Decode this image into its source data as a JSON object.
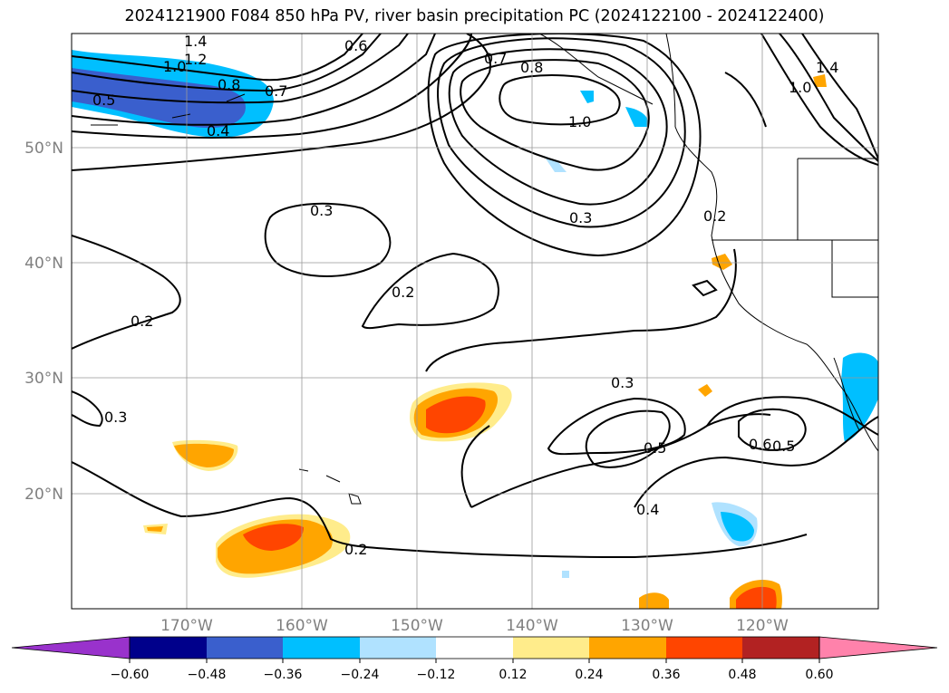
{
  "title": "2024121900 F084 850 hPa PV, river basin precipitation PC (2024122100 - 2024122400)",
  "map": {
    "projection": "plate-carree",
    "lon_range": [
      -180,
      -110
    ],
    "lat_range": [
      10,
      60
    ],
    "lat_ticks": [
      "50°N",
      "40°N",
      "30°N",
      "20°N"
    ],
    "lon_ticks": [
      "170°W",
      "160°W",
      "150°W",
      "140°W",
      "130°W",
      "120°W"
    ],
    "gridlines": true,
    "contour_labels": [
      "1.4",
      "1.2",
      "1.0",
      "0.8",
      "0.7",
      "0.5",
      "0.4",
      "0.6",
      "0.7",
      "0.8",
      "1.0",
      "0.3",
      "0.2",
      "0.2",
      "0.3",
      "0.3",
      "0.5",
      "0.6",
      "0.5",
      "0.4",
      "0.2",
      "0.2",
      "0.3",
      "1.4",
      "1.0"
    ]
  },
  "colorbar": {
    "ticks": [
      "−0.60",
      "−0.48",
      "−0.36",
      "−0.24",
      "−0.12",
      "0.12",
      "0.24",
      "0.36",
      "0.48",
      "0.60"
    ],
    "colors": [
      "#9932CC",
      "#00008B",
      "#3A5FCD",
      "#00BFFF",
      "#B0E2FF",
      "#FFFFFF",
      "#FFEC8B",
      "#FFA500",
      "#FF4500",
      "#B22222",
      "#FF82AB"
    ],
    "extend": "both"
  }
}
